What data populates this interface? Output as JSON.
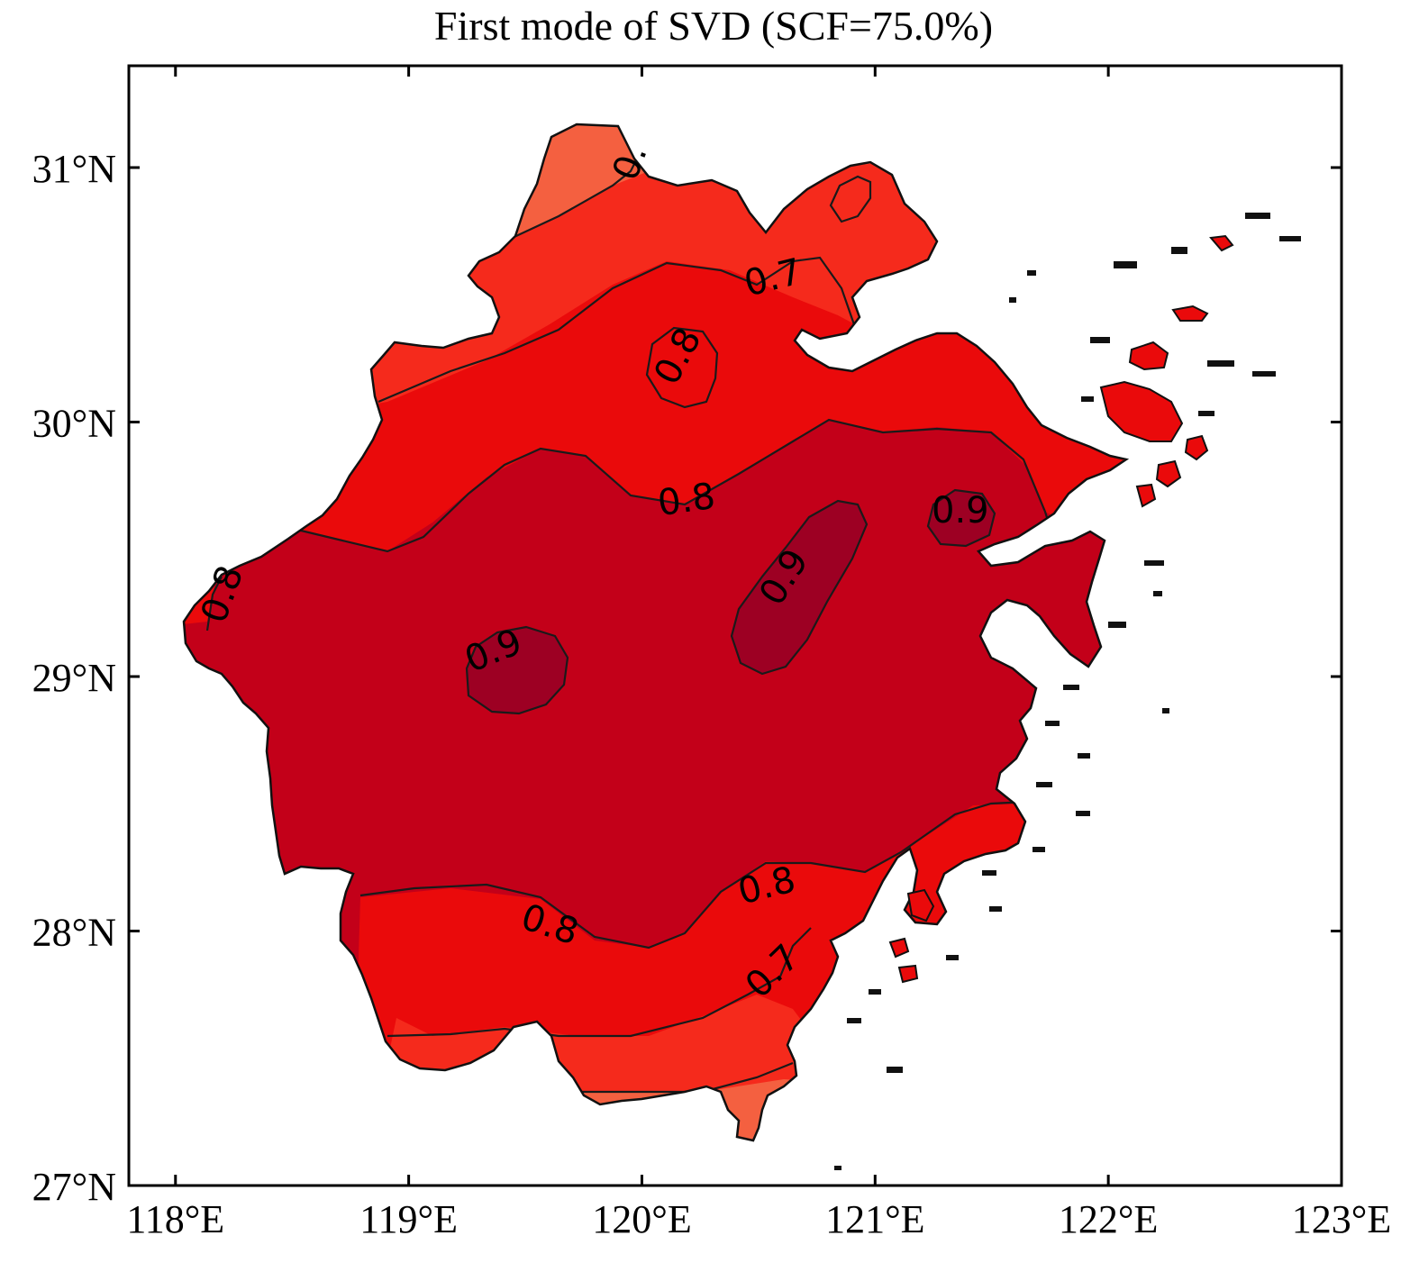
{
  "title": "First mode of SVD (SCF=75.0%)",
  "x_axis": {
    "ticks": [
      {
        "value": 118,
        "label": "118°E"
      },
      {
        "value": 119,
        "label": "119°E"
      },
      {
        "value": 120,
        "label": "120°E"
      },
      {
        "value": 121,
        "label": "121°E"
      },
      {
        "value": 122,
        "label": "122°E"
      },
      {
        "value": 123,
        "label": "123°E"
      }
    ],
    "range": [
      117.8,
      123.0
    ]
  },
  "y_axis": {
    "ticks": [
      {
        "value": 27,
        "label": "27°N"
      },
      {
        "value": 28,
        "label": "28°N"
      },
      {
        "value": 29,
        "label": "29°N"
      },
      {
        "value": 30,
        "label": "30°N"
      },
      {
        "value": 31,
        "label": "31°N"
      }
    ],
    "range": [
      27.0,
      31.4
    ]
  },
  "contour_levels": [
    {
      "level": "<0.6",
      "color": "#f46040"
    },
    {
      "level": "0.6-0.7",
      "color": "#f52a1c"
    },
    {
      "level": "0.7-0.8",
      "color": "#ea0a0b"
    },
    {
      "level": "0.8-0.9",
      "color": "#c30019"
    },
    {
      "level": ">0.9",
      "color": "#9d0023"
    }
  ],
  "contour_labels": {
    "l06_north": "0.",
    "l07_north": "0.7",
    "l08_north": "0.8",
    "l08_center": "0.8",
    "l09_west": "0.9",
    "l09_center": "0.9",
    "l09_east": "0.9",
    "l08_south_a": "0.8",
    "l08_south_b": "0.8",
    "l07_south": "0.7",
    "l08_west": "0.8"
  },
  "colors": {
    "frame": "#000000",
    "coastline": "#111111",
    "background": "#ffffff"
  }
}
